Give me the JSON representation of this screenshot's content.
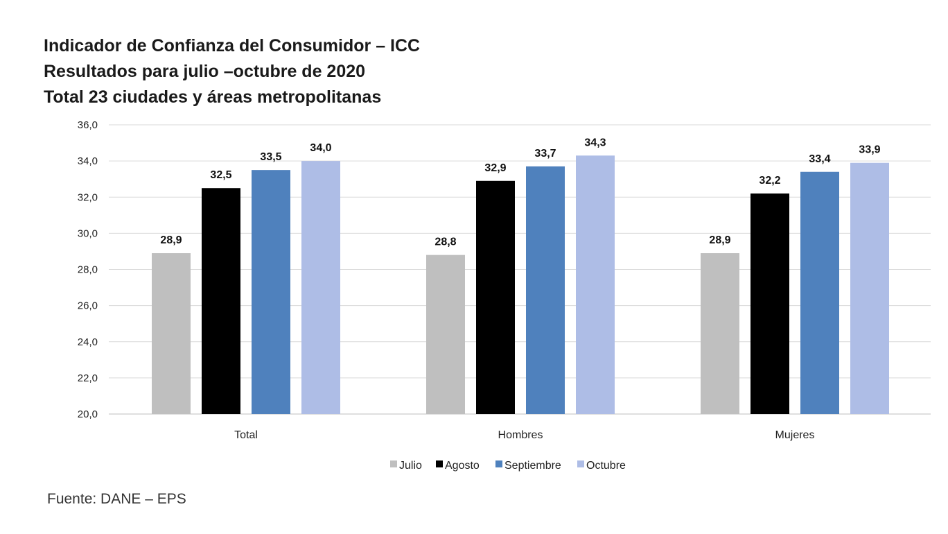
{
  "titles": {
    "line1": "Indicador de Confianza del Consumidor – ICC",
    "line2": "Resultados para julio –octubre de 2020",
    "line3": "Total 23 ciudades y áreas metropolitanas"
  },
  "source": "Fuente: DANE – EPS",
  "chart_data": {
    "type": "bar",
    "title": "Indicador de Confianza del Consumidor – ICC",
    "subtitle": "Resultados para julio –octubre de 2020 / Total 23 ciudades y áreas metropolitanas",
    "xlabel": "",
    "ylabel": "",
    "categories": [
      "Total",
      "Hombres",
      "Mujeres"
    ],
    "series": [
      {
        "name": "Julio",
        "color": "#bfbfbf",
        "values": [
          28.9,
          28.8,
          28.9
        ],
        "labels": [
          "28,9",
          "28,8",
          "28,9"
        ]
      },
      {
        "name": "Agosto",
        "color": "#000000",
        "values": [
          32.5,
          32.9,
          32.2
        ],
        "labels": [
          "32,5",
          "32,9",
          "32,2"
        ]
      },
      {
        "name": "Septiembre",
        "color": "#4f81bd",
        "values": [
          33.5,
          33.7,
          33.4
        ],
        "labels": [
          "33,5",
          "33,7",
          "33,4"
        ]
      },
      {
        "name": "Octubre",
        "color": "#aebde6",
        "values": [
          34.0,
          34.3,
          33.9
        ],
        "labels": [
          "34,0",
          "34,3",
          "33,9"
        ]
      }
    ],
    "ylim": [
      20,
      36
    ],
    "yticks": [
      "20,0",
      "22,0",
      "24,0",
      "26,0",
      "28,0",
      "30,0",
      "32,0",
      "34,0",
      "36,0"
    ],
    "grid": true,
    "legend_position": "bottom"
  }
}
